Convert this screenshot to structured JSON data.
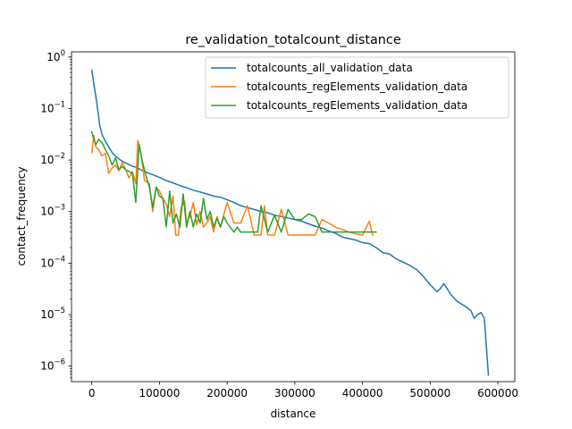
{
  "chart_data": {
    "type": "line",
    "title": "re_validation_totalcount_distance",
    "xlabel": "distance",
    "ylabel": "contact_frequency",
    "yscale": "log",
    "xlim": [
      -30000,
      625000
    ],
    "ylim_exponents": [
      -6.3,
      0.1
    ],
    "x_ticks": [
      0,
      100000,
      200000,
      300000,
      400000,
      500000,
      600000
    ],
    "x_tick_labels": [
      "0",
      "100000",
      "200000",
      "300000",
      "400000",
      "500000",
      "600000"
    ],
    "y_ticks": [
      0,
      -1,
      -2,
      -3,
      -4,
      -5,
      -6
    ],
    "y_tick_base": "10",
    "y_tick_exponents": [
      "0",
      "−1",
      "−2",
      "−3",
      "−4",
      "−5",
      "−6"
    ],
    "legend_position": "top-right",
    "series": [
      {
        "name": "totalcounts_all_validation_data",
        "color": "#1f77b4",
        "points": [
          [
            0,
            0.55
          ],
          [
            3000,
            0.3
          ],
          [
            6000,
            0.17
          ],
          [
            9000,
            0.09
          ],
          [
            12000,
            0.045
          ],
          [
            15000,
            0.032
          ],
          [
            18000,
            0.026
          ],
          [
            22000,
            0.021
          ],
          [
            26000,
            0.017
          ],
          [
            30000,
            0.014
          ],
          [
            35000,
            0.012
          ],
          [
            40000,
            0.0105
          ],
          [
            45000,
            0.0095
          ],
          [
            50000,
            0.0088
          ],
          [
            55000,
            0.0082
          ],
          [
            60000,
            0.0076
          ],
          [
            66000,
            0.0072
          ],
          [
            72000,
            0.0065
          ],
          [
            80000,
            0.0058
          ],
          [
            90000,
            0.0052
          ],
          [
            100000,
            0.0046
          ],
          [
            110000,
            0.004
          ],
          [
            120000,
            0.0036
          ],
          [
            130000,
            0.0032
          ],
          [
            140000,
            0.0029
          ],
          [
            150000,
            0.0026
          ],
          [
            160000,
            0.0024
          ],
          [
            170000,
            0.0022
          ],
          [
            180000,
            0.002
          ],
          [
            190000,
            0.0019
          ],
          [
            200000,
            0.0017
          ],
          [
            210000,
            0.0015
          ],
          [
            220000,
            0.0013
          ],
          [
            230000,
            0.0012
          ],
          [
            240000,
            0.0011
          ],
          [
            250000,
            0.001
          ],
          [
            260000,
            0.00095
          ],
          [
            270000,
            0.00085
          ],
          [
            280000,
            0.0008
          ],
          [
            290000,
            0.00075
          ],
          [
            300000,
            0.0007
          ],
          [
            310000,
            0.00065
          ],
          [
            320000,
            0.00058
          ],
          [
            330000,
            0.00052
          ],
          [
            340000,
            0.00048
          ],
          [
            350000,
            0.00042
          ],
          [
            360000,
            0.00038
          ],
          [
            370000,
            0.00032
          ],
          [
            380000,
            0.0003
          ],
          [
            390000,
            0.00028
          ],
          [
            400000,
            0.00025
          ],
          [
            410000,
            0.00024
          ],
          [
            420000,
            0.0002
          ],
          [
            430000,
            0.00016
          ],
          [
            440000,
            0.00015
          ],
          [
            450000,
            0.00012
          ],
          [
            460000,
            0.000105
          ],
          [
            470000,
            9e-05
          ],
          [
            480000,
            7.5e-05
          ],
          [
            490000,
            5.5e-05
          ],
          [
            500000,
            3.8e-05
          ],
          [
            510000,
            2.8e-05
          ],
          [
            515000,
            3.2e-05
          ],
          [
            520000,
            4e-05
          ],
          [
            525000,
            3.2e-05
          ],
          [
            530000,
            2.5e-05
          ],
          [
            540000,
            1.8e-05
          ],
          [
            550000,
            1.5e-05
          ],
          [
            560000,
            1.2e-05
          ],
          [
            565000,
            8.5e-06
          ],
          [
            570000,
            1e-05
          ],
          [
            575000,
            1.1e-05
          ],
          [
            580000,
            8.5e-06
          ],
          [
            586000,
            6.7e-07
          ]
        ]
      },
      {
        "name": "totalcounts_regElements_validation_data",
        "color": "#ff7f0e",
        "points": [
          [
            0,
            0.014
          ],
          [
            3000,
            0.03
          ],
          [
            6000,
            0.018
          ],
          [
            10000,
            0.016
          ],
          [
            15000,
            0.012
          ],
          [
            20000,
            0.0135
          ],
          [
            25000,
            0.0055
          ],
          [
            30000,
            0.007
          ],
          [
            35000,
            0.008
          ],
          [
            40000,
            0.0062
          ],
          [
            45000,
            0.009
          ],
          [
            50000,
            0.0065
          ],
          [
            55000,
            0.0045
          ],
          [
            60000,
            0.006
          ],
          [
            65000,
            0.0035
          ],
          [
            68000,
            0.024
          ],
          [
            72000,
            0.015
          ],
          [
            78000,
            0.004
          ],
          [
            85000,
            0.0035
          ],
          [
            90000,
            0.001
          ],
          [
            95000,
            0.003
          ],
          [
            100000,
            0.0025
          ],
          [
            105000,
            0.0018
          ],
          [
            110000,
            0.0014
          ],
          [
            115000,
            0.0008
          ],
          [
            120000,
            0.002
          ],
          [
            124000,
            0.00035
          ],
          [
            128000,
            0.00035
          ],
          [
            132000,
            0.0012
          ],
          [
            137000,
            0.0016
          ],
          [
            140000,
            0.0006
          ],
          [
            145000,
            0.0008
          ],
          [
            150000,
            0.0015
          ],
          [
            155000,
            0.00055
          ],
          [
            160000,
            0.001
          ],
          [
            165000,
            0.0005
          ],
          [
            170000,
            0.0006
          ],
          [
            175000,
            0.0008
          ],
          [
            180000,
            0.0004
          ],
          [
            185000,
            0.0008
          ],
          [
            190000,
            0.0005
          ],
          [
            200000,
            0.0015
          ],
          [
            210000,
            0.0006
          ],
          [
            220000,
            0.0006
          ],
          [
            230000,
            0.0013
          ],
          [
            240000,
            0.00035
          ],
          [
            250000,
            0.00035
          ],
          [
            255000,
            0.0013
          ],
          [
            260000,
            0.00035
          ],
          [
            270000,
            0.00035
          ],
          [
            280000,
            0.0011
          ],
          [
            290000,
            0.00035
          ],
          [
            300000,
            0.00035
          ],
          [
            310000,
            0.00035
          ],
          [
            320000,
            0.00035
          ],
          [
            330000,
            0.00035
          ],
          [
            340000,
            0.0007
          ],
          [
            350000,
            0.0006
          ],
          [
            360000,
            0.0005
          ],
          [
            370000,
            0.00045
          ],
          [
            380000,
            0.0004
          ],
          [
            390000,
            0.00037
          ],
          [
            400000,
            0.00035
          ],
          [
            410000,
            0.00065
          ],
          [
            415000,
            0.00035
          ]
        ]
      },
      {
        "name": "totalcounts_regElements_validation_data",
        "color": "#2ca02c",
        "points": [
          [
            0,
            0.035
          ],
          [
            3000,
            0.025
          ],
          [
            6000,
            0.02
          ],
          [
            10000,
            0.025
          ],
          [
            15000,
            0.022
          ],
          [
            20000,
            0.016
          ],
          [
            25000,
            0.012
          ],
          [
            30000,
            0.008
          ],
          [
            35000,
            0.011
          ],
          [
            40000,
            0.0065
          ],
          [
            45000,
            0.0075
          ],
          [
            50000,
            0.0065
          ],
          [
            55000,
            0.006
          ],
          [
            60000,
            0.0055
          ],
          [
            65000,
            0.0015
          ],
          [
            70000,
            0.02
          ],
          [
            75000,
            0.009
          ],
          [
            80000,
            0.005
          ],
          [
            85000,
            0.003
          ],
          [
            90000,
            0.0012
          ],
          [
            95000,
            0.003
          ],
          [
            100000,
            0.002
          ],
          [
            105000,
            0.0018
          ],
          [
            110000,
            0.0005
          ],
          [
            115000,
            0.0025
          ],
          [
            120000,
            0.0006
          ],
          [
            125000,
            0.0009
          ],
          [
            130000,
            0.0005
          ],
          [
            135000,
            0.0022
          ],
          [
            140000,
            0.0005
          ],
          [
            145000,
            0.001
          ],
          [
            150000,
            0.0005
          ],
          [
            155000,
            0.0009
          ],
          [
            160000,
            0.0006
          ],
          [
            165000,
            0.0018
          ],
          [
            170000,
            0.0007
          ],
          [
            175000,
            0.001
          ],
          [
            180000,
            0.0005
          ],
          [
            185000,
            0.00075
          ],
          [
            190000,
            0.0005
          ],
          [
            195000,
            0.0008
          ],
          [
            200000,
            0.0006
          ],
          [
            210000,
            0.0004
          ],
          [
            215000,
            0.0005
          ],
          [
            220000,
            0.0004
          ],
          [
            225000,
            0.0004
          ],
          [
            230000,
            0.0004
          ],
          [
            235000,
            0.0004
          ],
          [
            240000,
            0.0004
          ],
          [
            245000,
            0.0004
          ],
          [
            250000,
            0.0013
          ],
          [
            260000,
            0.0004
          ],
          [
            270000,
            0.00085
          ],
          [
            280000,
            0.0004
          ],
          [
            290000,
            0.0011
          ],
          [
            300000,
            0.0007
          ],
          [
            310000,
            0.0007
          ],
          [
            320000,
            0.0009
          ],
          [
            330000,
            0.0008
          ],
          [
            340000,
            0.0004
          ],
          [
            350000,
            0.0004
          ],
          [
            360000,
            0.0004
          ],
          [
            370000,
            0.0004
          ],
          [
            380000,
            0.0004
          ],
          [
            390000,
            0.0004
          ],
          [
            400000,
            0.0004
          ],
          [
            410000,
            0.0004
          ],
          [
            420000,
            0.0004
          ]
        ]
      }
    ]
  }
}
